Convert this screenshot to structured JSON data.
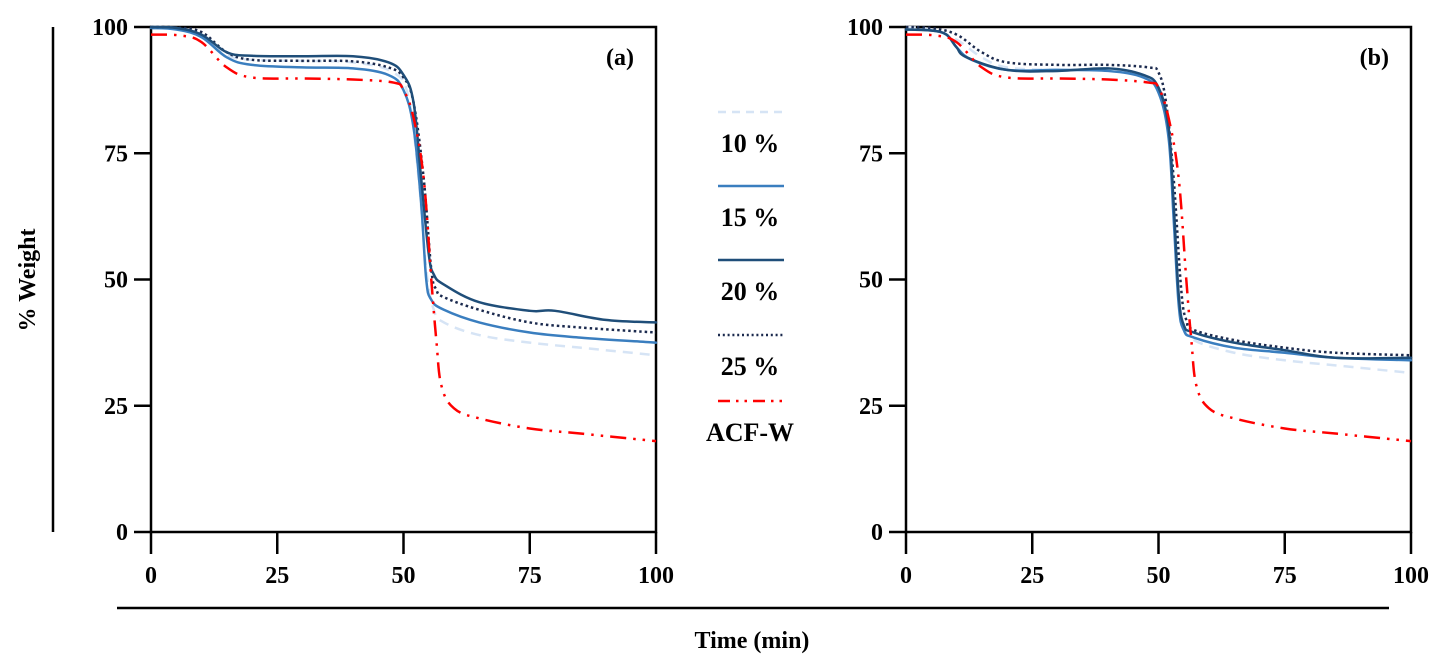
{
  "chart_data": {
    "type": "line",
    "shared": {
      "xlabel": "Time (min)",
      "ylabel": "% Weight",
      "xlim": [
        0,
        100
      ],
      "ylim": [
        0,
        100
      ],
      "xticks": [
        "0",
        "25",
        "50",
        "75",
        "100"
      ],
      "yticks": [
        "0",
        "25",
        "50",
        "75",
        "100"
      ],
      "grid": false,
      "legend_position": "center-between-panels"
    },
    "legend": [
      {
        "name": "10 %",
        "color": "#d6e4f5",
        "style": "dashed"
      },
      {
        "name": "15 %",
        "color": "#3a7ebf",
        "style": "solid"
      },
      {
        "name": "20 %",
        "color": "#1f4e79",
        "style": "solid"
      },
      {
        "name": "25 %",
        "color": "#1b2a4e",
        "style": "dotted"
      },
      {
        "name": "ACF-W",
        "color": "#ff0000",
        "style": "dash-dot-dot"
      }
    ],
    "panels": [
      {
        "label": "(a)",
        "series": [
          {
            "name": "10 %",
            "x": [
              0,
              5,
              10,
              15,
              20,
              30,
              40,
              48,
              51,
              53,
              54.5,
              56,
              58,
              65,
              75,
              85,
              100
            ],
            "y": [
              100,
              99.8,
              98.5,
              94.5,
              93.5,
              93.3,
              93,
              91,
              86,
              70,
              52,
              44,
              41.5,
              39,
              37.5,
              36.5,
              35
            ]
          },
          {
            "name": "15 %",
            "x": [
              0,
              5,
              10,
              15,
              20,
              30,
              40,
              47,
              50,
              52,
              53.5,
              54.5,
              55.5,
              58,
              65,
              75,
              85,
              100
            ],
            "y": [
              99.8,
              99.5,
              98,
              94,
              92.5,
              92,
              91.8,
              90.5,
              87.5,
              80,
              65,
              50,
              46,
              44,
              41.5,
              39.5,
              38.5,
              37.5
            ]
          },
          {
            "name": "20 %",
            "x": [
              0,
              5,
              10,
              15,
              20,
              30,
              40,
              47,
              50,
              52,
              53.5,
              55,
              56,
              58,
              65,
              75,
              80,
              90,
              100
            ],
            "y": [
              100,
              99.8,
              98.5,
              95,
              94.3,
              94.2,
              94.2,
              93,
              90.5,
              85,
              70,
              55,
              51,
              49,
              45.5,
              43.8,
              43.8,
              42,
              41.5
            ]
          },
          {
            "name": "25 %",
            "x": [
              0,
              5,
              10,
              15,
              20,
              30,
              40,
              47,
              50,
              52,
              54,
              55.5,
              56.5,
              58,
              65,
              75,
              85,
              100
            ],
            "y": [
              100,
              99.9,
              99,
              95,
              93.5,
              93.3,
              93.2,
              92,
              90,
              85,
              70,
              52,
              48,
              46.5,
              44,
              41.5,
              40.5,
              39.5
            ]
          },
          {
            "name": "ACF-W",
            "x": [
              0,
              6,
              10,
              15,
              20,
              30,
              40,
              48,
              50,
              52,
              54,
              55.5,
              56.5,
              57.5,
              60,
              65,
              75,
              85,
              100
            ],
            "y": [
              98.5,
              98.3,
              97,
              92,
              90,
              89.8,
              89.6,
              89,
              87.5,
              82,
              70,
              50,
              38,
              29,
              24.5,
              22.5,
              20.5,
              19.5,
              18
            ]
          }
        ]
      },
      {
        "label": "(b)",
        "series": [
          {
            "name": "10 %",
            "x": [
              0,
              5,
              10,
              15,
              20,
              30,
              40,
              47,
              50,
              52,
              53,
              54,
              55,
              57,
              65,
              75,
              85,
              100
            ],
            "y": [
              100,
              99.5,
              97.5,
              94,
              92,
              91.5,
              91.5,
              90.5,
              88,
              80,
              65,
              48,
              41,
              38,
              35.5,
              34,
              33,
              31.5
            ]
          },
          {
            "name": "15 %",
            "x": [
              0,
              5,
              8,
              10,
              13,
              20,
              30,
              40,
              47,
              50,
              52,
              53,
              54,
              55,
              57,
              65,
              75,
              85,
              100
            ],
            "y": [
              99.5,
              99.3,
              98.5,
              96,
              93.5,
              91.5,
              91.5,
              91.3,
              90,
              87,
              78,
              62,
              45,
              40,
              38.5,
              36.5,
              35.5,
              34.5,
              34
            ]
          },
          {
            "name": "20 %",
            "x": [
              0,
              5,
              8,
              10,
              12,
              20,
              30,
              40,
              47,
              50,
              52,
              53,
              54,
              55,
              57,
              65,
              75,
              85,
              100
            ],
            "y": [
              99.5,
              99.3,
              98.5,
              96,
              94,
              91.5,
              91.3,
              91.8,
              90.5,
              88,
              80,
              65,
              47,
              41,
              39.5,
              37.5,
              36,
              34.5,
              34.5
            ]
          },
          {
            "name": "25 %",
            "x": [
              0,
              5,
              10,
              15,
              20,
              30,
              40,
              48,
              50,
              51.5,
              53,
              54.5,
              55.5,
              57,
              65,
              75,
              85,
              100
            ],
            "y": [
              100,
              99.8,
              98.5,
              95,
              93,
              92.5,
              92.5,
              92,
              91,
              85,
              70,
              48,
              42,
              40,
              38,
              36.5,
              35.5,
              35
            ]
          },
          {
            "name": "ACF-W",
            "x": [
              0,
              6,
              10,
              15,
              20,
              30,
              40,
              48,
              50,
              52,
              54,
              55.5,
              56.5,
              57.5,
              60,
              65,
              75,
              85,
              100
            ],
            "y": [
              98.5,
              98.3,
              97,
              92,
              90,
              89.8,
              89.6,
              89,
              88,
              82,
              70,
              50,
              38,
              29,
              24.5,
              22.5,
              20.5,
              19.5,
              18
            ]
          }
        ]
      }
    ]
  }
}
